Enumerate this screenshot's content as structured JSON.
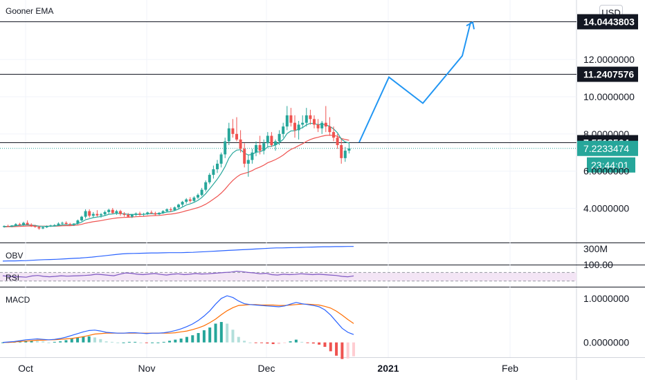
{
  "chart_data": [
    {
      "type": "candlestick",
      "pane": "price",
      "title": "Gooner EMA",
      "currency": "USD",
      "x_ticks": [
        "Oct",
        "Nov",
        "Dec",
        "2021",
        "Feb"
      ],
      "y_ticks": [
        "4.0000000",
        "6.0000000",
        "8.0000000",
        "10.0000000",
        "12.0000000"
      ],
      "ylim": [
        2.2,
        15.2
      ],
      "candles": [
        [
          3.0,
          3.08,
          2.96,
          3.05
        ],
        [
          3.05,
          3.12,
          3.0,
          3.02
        ],
        [
          3.02,
          3.1,
          2.98,
          3.08
        ],
        [
          3.08,
          3.2,
          3.04,
          3.15
        ],
        [
          3.15,
          3.22,
          3.08,
          3.1
        ],
        [
          3.1,
          3.28,
          3.06,
          3.22
        ],
        [
          3.22,
          3.35,
          3.15,
          3.12
        ],
        [
          3.12,
          3.2,
          3.0,
          3.05
        ],
        [
          3.05,
          3.12,
          2.96,
          3.0
        ],
        [
          3.0,
          3.06,
          2.85,
          2.92
        ],
        [
          2.92,
          3.02,
          2.88,
          2.98
        ],
        [
          2.98,
          3.08,
          2.94,
          3.05
        ],
        [
          3.05,
          3.12,
          3.0,
          3.08
        ],
        [
          3.08,
          3.15,
          3.02,
          3.1
        ],
        [
          3.1,
          3.25,
          3.05,
          3.18
        ],
        [
          3.18,
          3.28,
          3.1,
          3.22
        ],
        [
          3.22,
          3.3,
          3.12,
          3.16
        ],
        [
          3.16,
          3.22,
          3.05,
          3.12
        ],
        [
          3.12,
          3.2,
          3.05,
          3.18
        ],
        [
          3.18,
          3.4,
          3.12,
          3.35
        ],
        [
          3.35,
          3.6,
          3.3,
          3.55
        ],
        [
          3.55,
          3.95,
          3.45,
          3.85
        ],
        [
          3.85,
          3.95,
          3.5,
          3.6
        ],
        [
          3.6,
          3.8,
          3.5,
          3.7
        ],
        [
          3.7,
          3.9,
          3.55,
          3.62
        ],
        [
          3.62,
          3.75,
          3.5,
          3.68
        ],
        [
          3.68,
          3.88,
          3.6,
          3.8
        ],
        [
          3.8,
          3.98,
          3.7,
          3.92
        ],
        [
          3.92,
          4.02,
          3.7,
          3.75
        ],
        [
          3.75,
          3.92,
          3.65,
          3.85
        ],
        [
          3.85,
          3.92,
          3.6,
          3.7
        ],
        [
          3.7,
          3.8,
          3.55,
          3.65
        ],
        [
          3.65,
          3.75,
          3.5,
          3.55
        ],
        [
          3.55,
          3.7,
          3.48,
          3.65
        ],
        [
          3.65,
          3.78,
          3.58,
          3.72
        ],
        [
          3.72,
          3.82,
          3.6,
          3.66
        ],
        [
          3.66,
          3.76,
          3.58,
          3.7
        ],
        [
          3.7,
          3.82,
          3.64,
          3.78
        ],
        [
          3.78,
          3.88,
          3.7,
          3.74
        ],
        [
          3.74,
          3.82,
          3.62,
          3.68
        ],
        [
          3.68,
          3.8,
          3.62,
          3.76
        ],
        [
          3.76,
          3.9,
          3.7,
          3.85
        ],
        [
          3.85,
          4.0,
          3.78,
          3.95
        ],
        [
          3.95,
          4.05,
          3.8,
          3.9
        ],
        [
          3.9,
          4.1,
          3.85,
          4.05
        ],
        [
          4.05,
          4.25,
          3.98,
          4.2
        ],
        [
          4.2,
          4.4,
          4.1,
          4.35
        ],
        [
          4.35,
          4.55,
          4.25,
          4.48
        ],
        [
          4.48,
          4.6,
          4.3,
          4.4
        ],
        [
          4.4,
          4.65,
          4.35,
          4.58
        ],
        [
          4.58,
          4.8,
          4.5,
          4.72
        ],
        [
          4.72,
          5.1,
          4.65,
          5.0
        ],
        [
          5.0,
          5.5,
          4.9,
          5.4
        ],
        [
          5.4,
          5.9,
          5.3,
          5.8
        ],
        [
          5.8,
          6.3,
          5.6,
          6.1
        ],
        [
          6.1,
          6.6,
          5.9,
          6.4
        ],
        [
          6.4,
          7.0,
          6.2,
          6.9
        ],
        [
          6.9,
          7.8,
          6.7,
          7.6
        ],
        [
          7.6,
          8.6,
          7.4,
          8.3
        ],
        [
          8.3,
          8.8,
          7.8,
          8.0
        ],
        [
          8.0,
          8.9,
          7.6,
          7.7
        ],
        [
          7.7,
          8.2,
          7.0,
          7.2
        ],
        [
          7.2,
          7.5,
          6.2,
          6.4
        ],
        [
          6.4,
          6.9,
          5.7,
          6.6
        ],
        [
          6.6,
          7.2,
          6.4,
          7.0
        ],
        [
          7.0,
          7.6,
          6.8,
          7.4
        ],
        [
          7.4,
          7.9,
          6.9,
          7.1
        ],
        [
          7.1,
          7.7,
          6.9,
          7.5
        ],
        [
          7.5,
          8.1,
          7.3,
          7.9
        ],
        [
          7.9,
          8.1,
          7.3,
          7.4
        ],
        [
          7.4,
          7.7,
          7.1,
          7.6
        ],
        [
          7.6,
          8.2,
          7.4,
          8.0
        ],
        [
          8.0,
          8.6,
          7.8,
          8.4
        ],
        [
          8.4,
          9.5,
          8.2,
          9.0
        ],
        [
          9.0,
          9.4,
          8.4,
          8.6
        ],
        [
          8.6,
          9.0,
          7.8,
          8.2
        ],
        [
          8.2,
          8.7,
          7.7,
          8.5
        ],
        [
          8.5,
          9.0,
          8.3,
          8.6
        ],
        [
          8.6,
          9.4,
          8.4,
          9.0
        ],
        [
          9.0,
          9.3,
          8.5,
          8.8
        ],
        [
          8.8,
          9.0,
          8.3,
          8.5
        ],
        [
          8.5,
          8.8,
          8.1,
          8.3
        ],
        [
          8.3,
          8.7,
          8.0,
          8.6
        ],
        [
          8.6,
          9.5,
          8.1,
          8.4
        ],
        [
          8.4,
          8.9,
          7.9,
          8.1
        ],
        [
          8.1,
          8.4,
          7.6,
          7.8
        ],
        [
          7.8,
          8.0,
          7.2,
          7.4
        ],
        [
          7.4,
          7.7,
          6.4,
          6.7
        ],
        [
          6.7,
          7.3,
          6.5,
          7.1
        ],
        [
          7.1,
          7.5,
          6.95,
          7.22
        ]
      ],
      "ema_short": [
        3.02,
        3.03,
        3.04,
        3.07,
        3.08,
        3.11,
        3.11,
        3.1,
        3.08,
        3.04,
        3.03,
        3.03,
        3.04,
        3.05,
        3.08,
        3.11,
        3.12,
        3.12,
        3.13,
        3.18,
        3.26,
        3.39,
        3.44,
        3.5,
        3.53,
        3.56,
        3.61,
        3.68,
        3.7,
        3.73,
        3.72,
        3.71,
        3.67,
        3.67,
        3.68,
        3.67,
        3.68,
        3.7,
        3.71,
        3.7,
        3.72,
        3.75,
        3.8,
        3.82,
        3.88,
        3.96,
        4.07,
        4.18,
        4.24,
        4.32,
        4.43,
        4.58,
        4.79,
        5.04,
        5.3,
        5.57,
        5.88,
        6.24,
        6.7,
        6.98,
        7.13,
        7.15,
        6.96,
        6.87,
        6.9,
        7.02,
        7.04,
        7.13,
        7.3,
        7.34,
        7.4,
        7.53,
        7.71,
        8.02,
        8.16,
        8.17,
        8.26,
        8.34,
        8.49,
        8.57,
        8.56,
        8.5,
        8.52,
        8.49,
        8.41,
        8.27,
        8.06,
        7.72,
        7.57,
        7.51
      ],
      "ema_long": [
        3.0,
        3.01,
        3.01,
        3.02,
        3.03,
        3.04,
        3.05,
        3.05,
        3.05,
        3.04,
        3.04,
        3.04,
        3.04,
        3.04,
        3.05,
        3.06,
        3.07,
        3.07,
        3.08,
        3.1,
        3.14,
        3.2,
        3.24,
        3.28,
        3.31,
        3.34,
        3.38,
        3.42,
        3.45,
        3.48,
        3.5,
        3.51,
        3.52,
        3.53,
        3.55,
        3.56,
        3.57,
        3.59,
        3.6,
        3.61,
        3.62,
        3.64,
        3.67,
        3.69,
        3.72,
        3.76,
        3.81,
        3.87,
        3.92,
        3.98,
        4.04,
        4.12,
        4.22,
        4.35,
        4.49,
        4.64,
        4.82,
        5.03,
        5.28,
        5.5,
        5.68,
        5.82,
        5.88,
        5.94,
        6.03,
        6.14,
        6.22,
        6.32,
        6.45,
        6.53,
        6.62,
        6.73,
        6.86,
        7.03,
        7.17,
        7.26,
        7.37,
        7.47,
        7.6,
        7.7,
        7.77,
        7.82,
        7.88,
        7.92,
        7.93,
        7.92,
        7.87,
        7.76,
        7.7,
        7.66
      ],
      "projection": [
        [
          7.43,
          7.55
        ],
        [
          11.05,
          11.05
        ],
        [
          9.65,
          9.65
        ],
        [
          12.2,
          12.2
        ],
        [
          14.0,
          14.0
        ]
      ],
      "horizontal_levels": [
        "14.0443803",
        "11.2407576",
        "7.5518564"
      ],
      "current_price": "7.2233474",
      "countdown": "23:44:01"
    },
    {
      "type": "line",
      "pane": "OBV",
      "title": "OBV",
      "y_ticks": [
        "300M"
      ],
      "values": [
        0.05,
        0.06,
        0.06,
        0.07,
        0.08,
        0.1,
        0.12,
        0.14,
        0.15,
        0.16,
        0.18,
        0.2,
        0.22,
        0.24,
        0.27,
        0.3,
        0.34,
        0.38,
        0.42,
        0.46,
        0.5,
        0.52,
        0.53,
        0.54,
        0.55,
        0.56,
        0.56,
        0.57,
        0.58,
        0.58,
        0.58,
        0.59,
        0.6,
        0.62,
        0.64,
        0.66,
        0.68,
        0.7,
        0.72,
        0.74,
        0.76,
        0.78,
        0.8,
        0.82,
        0.84,
        0.86,
        0.88,
        0.88,
        0.89,
        0.9,
        0.91,
        0.92,
        0.93,
        0.94,
        0.95,
        0.95,
        0.96,
        0.96,
        0.97,
        0.97
      ]
    },
    {
      "type": "line",
      "pane": "RSI",
      "title": "RSI",
      "y_ticks": [
        "100.00"
      ],
      "band": [
        30,
        70
      ],
      "values": [
        55,
        52,
        50,
        50,
        48,
        54,
        56,
        52,
        50,
        52,
        55,
        53,
        54,
        55,
        56,
        58,
        62,
        60,
        57,
        55,
        62,
        68,
        66,
        62,
        60,
        63,
        65,
        61,
        58,
        62,
        64,
        60,
        62,
        65,
        63,
        64,
        66,
        68,
        70,
        72,
        76,
        74,
        70,
        68,
        64,
        66,
        60,
        58,
        62,
        60,
        61,
        64,
        62,
        60,
        62,
        60,
        58,
        56,
        52,
        50,
        54
      ]
    },
    {
      "type": "line",
      "pane": "MACD",
      "title": "MACD",
      "y_ticks": [
        "1.0000000",
        "0.0000000"
      ],
      "ylim": [
        -0.32,
        1.25
      ],
      "macd": [
        0.0,
        0.01,
        0.02,
        0.04,
        0.06,
        0.07,
        0.08,
        0.07,
        0.06,
        0.07,
        0.09,
        0.12,
        0.16,
        0.2,
        0.24,
        0.27,
        0.28,
        0.26,
        0.23,
        0.22,
        0.21,
        0.21,
        0.22,
        0.22,
        0.21,
        0.2,
        0.21,
        0.21,
        0.22,
        0.24,
        0.27,
        0.31,
        0.36,
        0.42,
        0.5,
        0.6,
        0.72,
        0.87,
        1.0,
        1.06,
        1.02,
        0.94,
        0.88,
        0.86,
        0.85,
        0.84,
        0.83,
        0.82,
        0.81,
        0.83,
        0.87,
        0.91,
        0.88,
        0.86,
        0.84,
        0.81,
        0.74,
        0.62,
        0.47,
        0.32,
        0.23,
        0.18
      ],
      "signal": [
        0.0,
        0.0,
        0.01,
        0.02,
        0.03,
        0.04,
        0.05,
        0.05,
        0.06,
        0.06,
        0.07,
        0.08,
        0.09,
        0.11,
        0.13,
        0.16,
        0.19,
        0.2,
        0.21,
        0.21,
        0.21,
        0.21,
        0.21,
        0.21,
        0.21,
        0.21,
        0.21,
        0.21,
        0.21,
        0.21,
        0.22,
        0.24,
        0.26,
        0.29,
        0.33,
        0.38,
        0.45,
        0.53,
        0.63,
        0.72,
        0.79,
        0.84,
        0.85,
        0.86,
        0.86,
        0.85,
        0.85,
        0.85,
        0.84,
        0.84,
        0.85,
        0.86,
        0.87,
        0.87,
        0.86,
        0.85,
        0.82,
        0.78,
        0.71,
        0.62,
        0.52,
        0.43
      ]
    }
  ]
}
